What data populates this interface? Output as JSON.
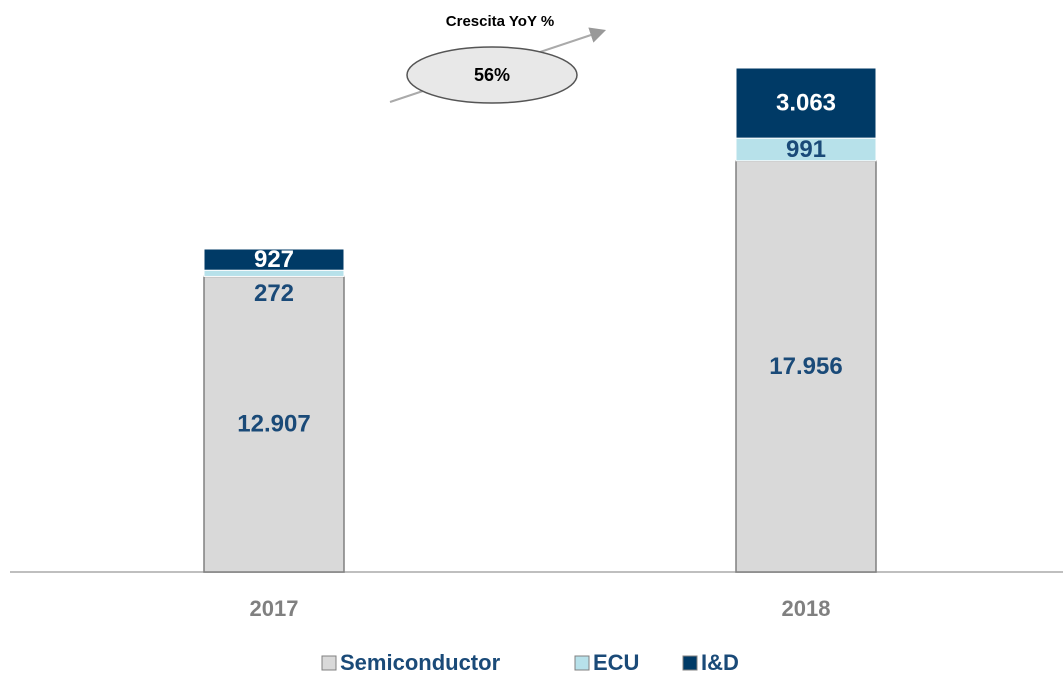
{
  "chart_data": {
    "type": "stacked_bar",
    "categories": [
      "2017",
      "2018"
    ],
    "series": [
      {
        "name": "Semiconductor",
        "color": "#d9d9d9",
        "values": [
          12907,
          17956
        ],
        "value_labels": [
          "12.907",
          "17.956"
        ]
      },
      {
        "name": "ECU",
        "color": "#b7e1ea",
        "values": [
          272,
          991
        ],
        "value_labels": [
          "272",
          "991"
        ]
      },
      {
        "name": "I&D",
        "color": "#003a66",
        "values": [
          927,
          3063
        ],
        "value_labels": [
          "927",
          "3.063"
        ]
      }
    ],
    "annotation": {
      "title": "Crescita YoY %",
      "text": "56%"
    },
    "legend": "bottom"
  }
}
